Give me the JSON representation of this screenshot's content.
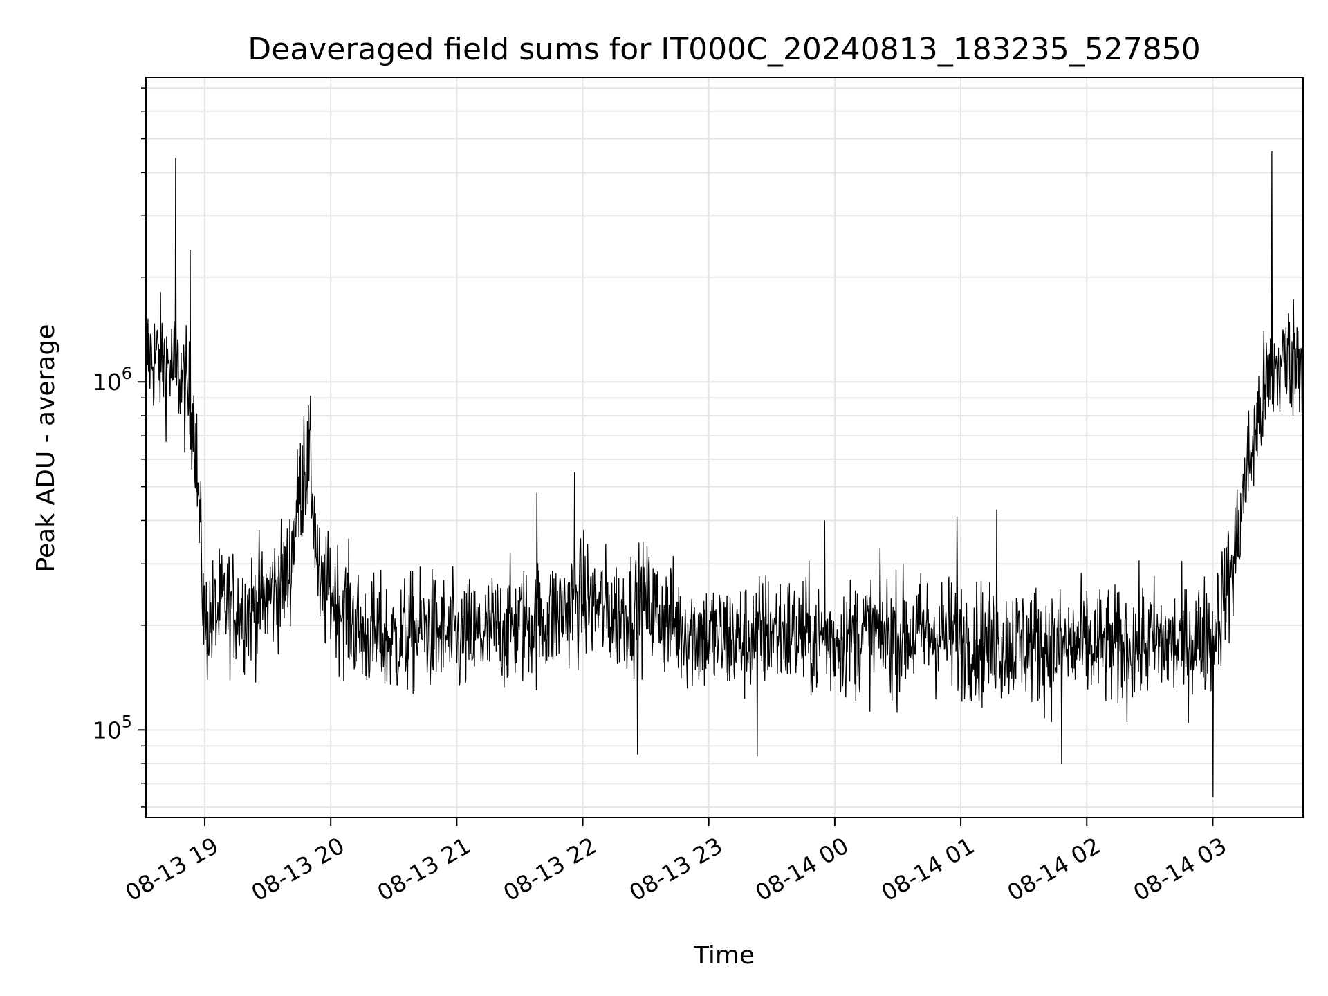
{
  "chart_data": {
    "type": "line",
    "title": "Deaveraged field sums for IT000C_20240813_183235_527850",
    "xlabel": "Time",
    "ylabel": "Peak ADU - average",
    "y_scale": "log",
    "ylim": [
      56000,
      7500000
    ],
    "xlim": [
      "08-13 18:32",
      "08-14 03:43"
    ],
    "grid": true,
    "line_color": "#000000",
    "grid_color": "#e5e5e5",
    "x_ticks": [
      "08-13 19",
      "08-13 20",
      "08-13 21",
      "08-13 22",
      "08-13 23",
      "08-14 00",
      "08-14 01",
      "08-14 02",
      "08-14 03"
    ],
    "y_ticks": [
      {
        "base": "10",
        "exp": "5",
        "value": 100000
      },
      {
        "base": "10",
        "exp": "6",
        "value": 1000000
      }
    ],
    "series": [
      {
        "x": [
          "08-13 18:32",
          "08-13 18:40",
          "08-13 18:48",
          "08-13 18:55",
          "08-13 19:00",
          "08-13 19:10",
          "08-13 19:20",
          "08-13 19:30",
          "08-13 19:40",
          "08-13 19:45",
          "08-13 19:50",
          "08-13 19:55",
          "08-13 20:00",
          "08-13 20:15",
          "08-13 20:30",
          "08-13 20:45",
          "08-13 21:00",
          "08-13 21:15",
          "08-13 21:30",
          "08-13 21:45",
          "08-13 22:00",
          "08-13 22:15",
          "08-13 22:30",
          "08-13 22:45",
          "08-13 23:00",
          "08-13 23:15",
          "08-13 23:30",
          "08-13 23:45",
          "08-14 00:00",
          "08-14 00:15",
          "08-14 00:30",
          "08-14 00:45",
          "08-14 01:00",
          "08-14 01:15",
          "08-14 01:30",
          "08-14 01:45",
          "08-14 02:00",
          "08-14 02:15",
          "08-14 02:30",
          "08-14 02:45",
          "08-14 03:00",
          "08-14 03:10",
          "08-14 03:15",
          "08-14 03:20",
          "08-14 03:25",
          "08-14 03:30",
          "08-14 03:35",
          "08-14 03:43"
        ],
        "y": [
          1200000,
          1150000,
          1050000,
          800000,
          200000,
          230000,
          220000,
          240000,
          280000,
          480000,
          600000,
          240000,
          250000,
          190000,
          180000,
          195000,
          180000,
          190000,
          200000,
          210000,
          240000,
          215000,
          230000,
          200000,
          185000,
          180000,
          195000,
          185000,
          180000,
          190000,
          185000,
          190000,
          185000,
          175000,
          180000,
          170000,
          175000,
          170000,
          180000,
          175000,
          190000,
          300000,
          500000,
          700000,
          950000,
          1100000,
          1150000,
          1200000
        ]
      }
    ],
    "spikes": [
      {
        "x": "08-13 18:46",
        "y": 4400000
      },
      {
        "x": "08-13 18:53",
        "y": 2400000
      },
      {
        "x": "08-13 19:47",
        "y": 800000
      },
      {
        "x": "08-13 21:38",
        "y": 480000
      },
      {
        "x": "08-13 21:56",
        "y": 550000
      },
      {
        "x": "08-13 23:55",
        "y": 400000
      },
      {
        "x": "08-14 00:58",
        "y": 410000
      },
      {
        "x": "08-14 01:17",
        "y": 430000
      },
      {
        "x": "08-14 03:28",
        "y": 4600000
      },
      {
        "x": "08-13 22:26",
        "y": 85000
      },
      {
        "x": "08-13 23:23",
        "y": 84000
      },
      {
        "x": "08-14 01:48",
        "y": 80000
      },
      {
        "x": "08-14 03:00",
        "y": 64000
      }
    ]
  }
}
